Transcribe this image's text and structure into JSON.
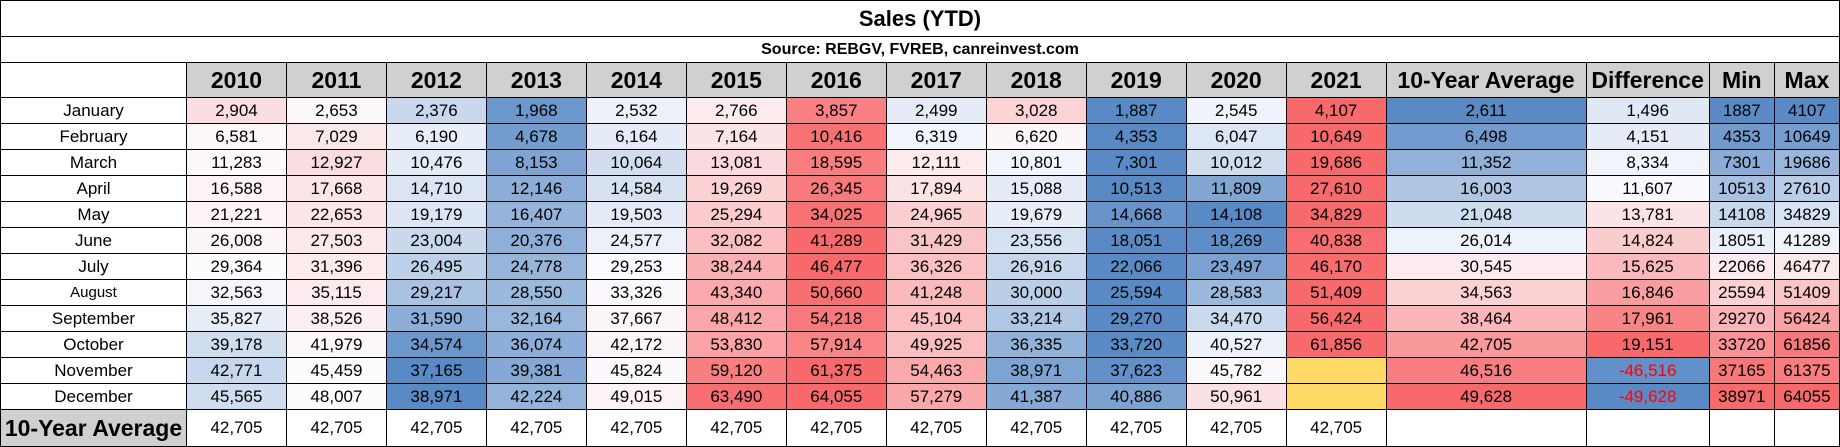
{
  "title": "Sales (YTD)",
  "source": "Source: REBGV, FVREB, canreinvest.com",
  "headers": [
    "2010",
    "2011",
    "2012",
    "2013",
    "2014",
    "2015",
    "2016",
    "2017",
    "2018",
    "2019",
    "2020",
    "2021",
    "10-Year Average",
    "Difference",
    "Min",
    "Max"
  ],
  "rows": [
    {
      "month": "January",
      "values": [
        "2,904",
        "2,653",
        "2,376",
        "1,968",
        "2,532",
        "2,766",
        "3,857",
        "2,499",
        "3,028",
        "1,887",
        "2,545",
        "4,107"
      ],
      "avg": "2,611",
      "diff": "1,496",
      "min": "1887",
      "max": "4107"
    },
    {
      "month": "February",
      "values": [
        "6,581",
        "7,029",
        "6,190",
        "4,678",
        "6,164",
        "7,164",
        "10,416",
        "6,319",
        "6,620",
        "4,353",
        "6,047",
        "10,649"
      ],
      "avg": "6,498",
      "diff": "4,151",
      "min": "4353",
      "max": "10649"
    },
    {
      "month": "March",
      "values": [
        "11,283",
        "12,927",
        "10,476",
        "8,153",
        "10,064",
        "13,081",
        "18,595",
        "12,111",
        "10,801",
        "7,301",
        "10,012",
        "19,686"
      ],
      "avg": "11,352",
      "diff": "8,334",
      "min": "7301",
      "max": "19686"
    },
    {
      "month": "April",
      "values": [
        "16,588",
        "17,668",
        "14,710",
        "12,146",
        "14,584",
        "19,269",
        "26,345",
        "17,894",
        "15,088",
        "10,513",
        "11,809",
        "27,610"
      ],
      "avg": "16,003",
      "diff": "11,607",
      "min": "10513",
      "max": "27610"
    },
    {
      "month": "May",
      "values": [
        "21,221",
        "22,653",
        "19,179",
        "16,407",
        "19,503",
        "25,294",
        "34,025",
        "24,965",
        "19,679",
        "14,668",
        "14,108",
        "34,829"
      ],
      "avg": "21,048",
      "diff": "13,781",
      "min": "14108",
      "max": "34829"
    },
    {
      "month": "June",
      "values": [
        "26,008",
        "27,503",
        "23,004",
        "20,376",
        "24,577",
        "32,082",
        "41,289",
        "31,429",
        "23,556",
        "18,051",
        "18,269",
        "40,838"
      ],
      "avg": "26,014",
      "diff": "14,824",
      "min": "18051",
      "max": "41289"
    },
    {
      "month": "July",
      "values": [
        "29,364",
        "31,396",
        "26,495",
        "24,778",
        "29,253",
        "38,244",
        "46,477",
        "36,326",
        "26,916",
        "22,066",
        "23,497",
        "46,170"
      ],
      "avg": "30,545",
      "diff": "15,625",
      "min": "22066",
      "max": "46477"
    },
    {
      "month": "August",
      "values": [
        "32,563",
        "35,115",
        "29,217",
        "28,550",
        "33,326",
        "43,340",
        "50,660",
        "41,248",
        "30,000",
        "25,594",
        "28,583",
        "51,409"
      ],
      "avg": "34,563",
      "diff": "16,846",
      "min": "25594",
      "max": "51409"
    },
    {
      "month": "September",
      "values": [
        "35,827",
        "38,526",
        "31,590",
        "32,164",
        "37,667",
        "48,412",
        "54,218",
        "45,104",
        "33,214",
        "29,270",
        "34,470",
        "56,424"
      ],
      "avg": "38,464",
      "diff": "17,961",
      "min": "29270",
      "max": "56424"
    },
    {
      "month": "October",
      "values": [
        "39,178",
        "41,979",
        "34,574",
        "36,074",
        "42,172",
        "53,830",
        "57,914",
        "49,925",
        "36,335",
        "33,720",
        "40,527",
        "61,856"
      ],
      "avg": "42,705",
      "diff": "19,151",
      "min": "33720",
      "max": "61856"
    },
    {
      "month": "November",
      "values": [
        "42,771",
        "45,459",
        "37,165",
        "39,381",
        "45,824",
        "59,120",
        "61,375",
        "54,463",
        "38,971",
        "37,623",
        "45,782",
        ""
      ],
      "avg": "46,516",
      "diff": "-46,516",
      "min": "37165",
      "max": "61375"
    },
    {
      "month": "December",
      "values": [
        "45,565",
        "48,007",
        "38,971",
        "42,224",
        "49,015",
        "63,490",
        "64,055",
        "57,279",
        "41,387",
        "40,886",
        "50,961",
        ""
      ],
      "avg": "49,628",
      "diff": "-49,628",
      "min": "38971",
      "max": "64055"
    }
  ],
  "avg_row": {
    "label": "10-Year Average",
    "values": [
      "42,705",
      "42,705",
      "42,705",
      "42,705",
      "42,705",
      "42,705",
      "42,705",
      "42,705",
      "42,705",
      "42,705",
      "42,705",
      "42,705"
    ]
  },
  "colors": {
    "high": "#f8696b",
    "mid": "#fcfcff",
    "low": "#5a8ac6",
    "header_gray": "#d0d0d0",
    "empty_cell": "#ffd966",
    "negative_text": "#ff0000"
  }
}
